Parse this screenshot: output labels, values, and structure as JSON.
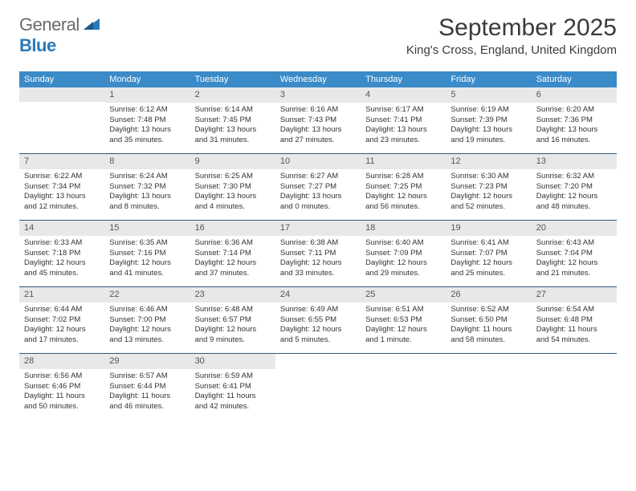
{
  "brand": {
    "general": "General",
    "blue": "Blue"
  },
  "title": "September 2025",
  "location": "King's Cross, England, United Kingdom",
  "colors": {
    "header_bg": "#3b8bc9",
    "daynum_bg": "#e8e8e8",
    "row_border": "#2e5a7d",
    "text": "#333333",
    "logo_gray": "#6a6a6a",
    "logo_blue": "#2a7ab9"
  },
  "daynames": [
    "Sunday",
    "Monday",
    "Tuesday",
    "Wednesday",
    "Thursday",
    "Friday",
    "Saturday"
  ],
  "weeks": [
    [
      {
        "blank": true
      },
      {
        "num": "1",
        "sunrise": "Sunrise: 6:12 AM",
        "sunset": "Sunset: 7:48 PM",
        "daylight1": "Daylight: 13 hours",
        "daylight2": "and 35 minutes."
      },
      {
        "num": "2",
        "sunrise": "Sunrise: 6:14 AM",
        "sunset": "Sunset: 7:45 PM",
        "daylight1": "Daylight: 13 hours",
        "daylight2": "and 31 minutes."
      },
      {
        "num": "3",
        "sunrise": "Sunrise: 6:16 AM",
        "sunset": "Sunset: 7:43 PM",
        "daylight1": "Daylight: 13 hours",
        "daylight2": "and 27 minutes."
      },
      {
        "num": "4",
        "sunrise": "Sunrise: 6:17 AM",
        "sunset": "Sunset: 7:41 PM",
        "daylight1": "Daylight: 13 hours",
        "daylight2": "and 23 minutes."
      },
      {
        "num": "5",
        "sunrise": "Sunrise: 6:19 AM",
        "sunset": "Sunset: 7:39 PM",
        "daylight1": "Daylight: 13 hours",
        "daylight2": "and 19 minutes."
      },
      {
        "num": "6",
        "sunrise": "Sunrise: 6:20 AM",
        "sunset": "Sunset: 7:36 PM",
        "daylight1": "Daylight: 13 hours",
        "daylight2": "and 16 minutes."
      }
    ],
    [
      {
        "num": "7",
        "sunrise": "Sunrise: 6:22 AM",
        "sunset": "Sunset: 7:34 PM",
        "daylight1": "Daylight: 13 hours",
        "daylight2": "and 12 minutes."
      },
      {
        "num": "8",
        "sunrise": "Sunrise: 6:24 AM",
        "sunset": "Sunset: 7:32 PM",
        "daylight1": "Daylight: 13 hours",
        "daylight2": "and 8 minutes."
      },
      {
        "num": "9",
        "sunrise": "Sunrise: 6:25 AM",
        "sunset": "Sunset: 7:30 PM",
        "daylight1": "Daylight: 13 hours",
        "daylight2": "and 4 minutes."
      },
      {
        "num": "10",
        "sunrise": "Sunrise: 6:27 AM",
        "sunset": "Sunset: 7:27 PM",
        "daylight1": "Daylight: 13 hours",
        "daylight2": "and 0 minutes."
      },
      {
        "num": "11",
        "sunrise": "Sunrise: 6:28 AM",
        "sunset": "Sunset: 7:25 PM",
        "daylight1": "Daylight: 12 hours",
        "daylight2": "and 56 minutes."
      },
      {
        "num": "12",
        "sunrise": "Sunrise: 6:30 AM",
        "sunset": "Sunset: 7:23 PM",
        "daylight1": "Daylight: 12 hours",
        "daylight2": "and 52 minutes."
      },
      {
        "num": "13",
        "sunrise": "Sunrise: 6:32 AM",
        "sunset": "Sunset: 7:20 PM",
        "daylight1": "Daylight: 12 hours",
        "daylight2": "and 48 minutes."
      }
    ],
    [
      {
        "num": "14",
        "sunrise": "Sunrise: 6:33 AM",
        "sunset": "Sunset: 7:18 PM",
        "daylight1": "Daylight: 12 hours",
        "daylight2": "and 45 minutes."
      },
      {
        "num": "15",
        "sunrise": "Sunrise: 6:35 AM",
        "sunset": "Sunset: 7:16 PM",
        "daylight1": "Daylight: 12 hours",
        "daylight2": "and 41 minutes."
      },
      {
        "num": "16",
        "sunrise": "Sunrise: 6:36 AM",
        "sunset": "Sunset: 7:14 PM",
        "daylight1": "Daylight: 12 hours",
        "daylight2": "and 37 minutes."
      },
      {
        "num": "17",
        "sunrise": "Sunrise: 6:38 AM",
        "sunset": "Sunset: 7:11 PM",
        "daylight1": "Daylight: 12 hours",
        "daylight2": "and 33 minutes."
      },
      {
        "num": "18",
        "sunrise": "Sunrise: 6:40 AM",
        "sunset": "Sunset: 7:09 PM",
        "daylight1": "Daylight: 12 hours",
        "daylight2": "and 29 minutes."
      },
      {
        "num": "19",
        "sunrise": "Sunrise: 6:41 AM",
        "sunset": "Sunset: 7:07 PM",
        "daylight1": "Daylight: 12 hours",
        "daylight2": "and 25 minutes."
      },
      {
        "num": "20",
        "sunrise": "Sunrise: 6:43 AM",
        "sunset": "Sunset: 7:04 PM",
        "daylight1": "Daylight: 12 hours",
        "daylight2": "and 21 minutes."
      }
    ],
    [
      {
        "num": "21",
        "sunrise": "Sunrise: 6:44 AM",
        "sunset": "Sunset: 7:02 PM",
        "daylight1": "Daylight: 12 hours",
        "daylight2": "and 17 minutes."
      },
      {
        "num": "22",
        "sunrise": "Sunrise: 6:46 AM",
        "sunset": "Sunset: 7:00 PM",
        "daylight1": "Daylight: 12 hours",
        "daylight2": "and 13 minutes."
      },
      {
        "num": "23",
        "sunrise": "Sunrise: 6:48 AM",
        "sunset": "Sunset: 6:57 PM",
        "daylight1": "Daylight: 12 hours",
        "daylight2": "and 9 minutes."
      },
      {
        "num": "24",
        "sunrise": "Sunrise: 6:49 AM",
        "sunset": "Sunset: 6:55 PM",
        "daylight1": "Daylight: 12 hours",
        "daylight2": "and 5 minutes."
      },
      {
        "num": "25",
        "sunrise": "Sunrise: 6:51 AM",
        "sunset": "Sunset: 6:53 PM",
        "daylight1": "Daylight: 12 hours",
        "daylight2": "and 1 minute."
      },
      {
        "num": "26",
        "sunrise": "Sunrise: 6:52 AM",
        "sunset": "Sunset: 6:50 PM",
        "daylight1": "Daylight: 11 hours",
        "daylight2": "and 58 minutes."
      },
      {
        "num": "27",
        "sunrise": "Sunrise: 6:54 AM",
        "sunset": "Sunset: 6:48 PM",
        "daylight1": "Daylight: 11 hours",
        "daylight2": "and 54 minutes."
      }
    ],
    [
      {
        "num": "28",
        "sunrise": "Sunrise: 6:56 AM",
        "sunset": "Sunset: 6:46 PM",
        "daylight1": "Daylight: 11 hours",
        "daylight2": "and 50 minutes."
      },
      {
        "num": "29",
        "sunrise": "Sunrise: 6:57 AM",
        "sunset": "Sunset: 6:44 PM",
        "daylight1": "Daylight: 11 hours",
        "daylight2": "and 46 minutes."
      },
      {
        "num": "30",
        "sunrise": "Sunrise: 6:59 AM",
        "sunset": "Sunset: 6:41 PM",
        "daylight1": "Daylight: 11 hours",
        "daylight2": "and 42 minutes."
      },
      {
        "blank": true
      },
      {
        "blank": true
      },
      {
        "blank": true
      },
      {
        "blank": true
      }
    ]
  ]
}
